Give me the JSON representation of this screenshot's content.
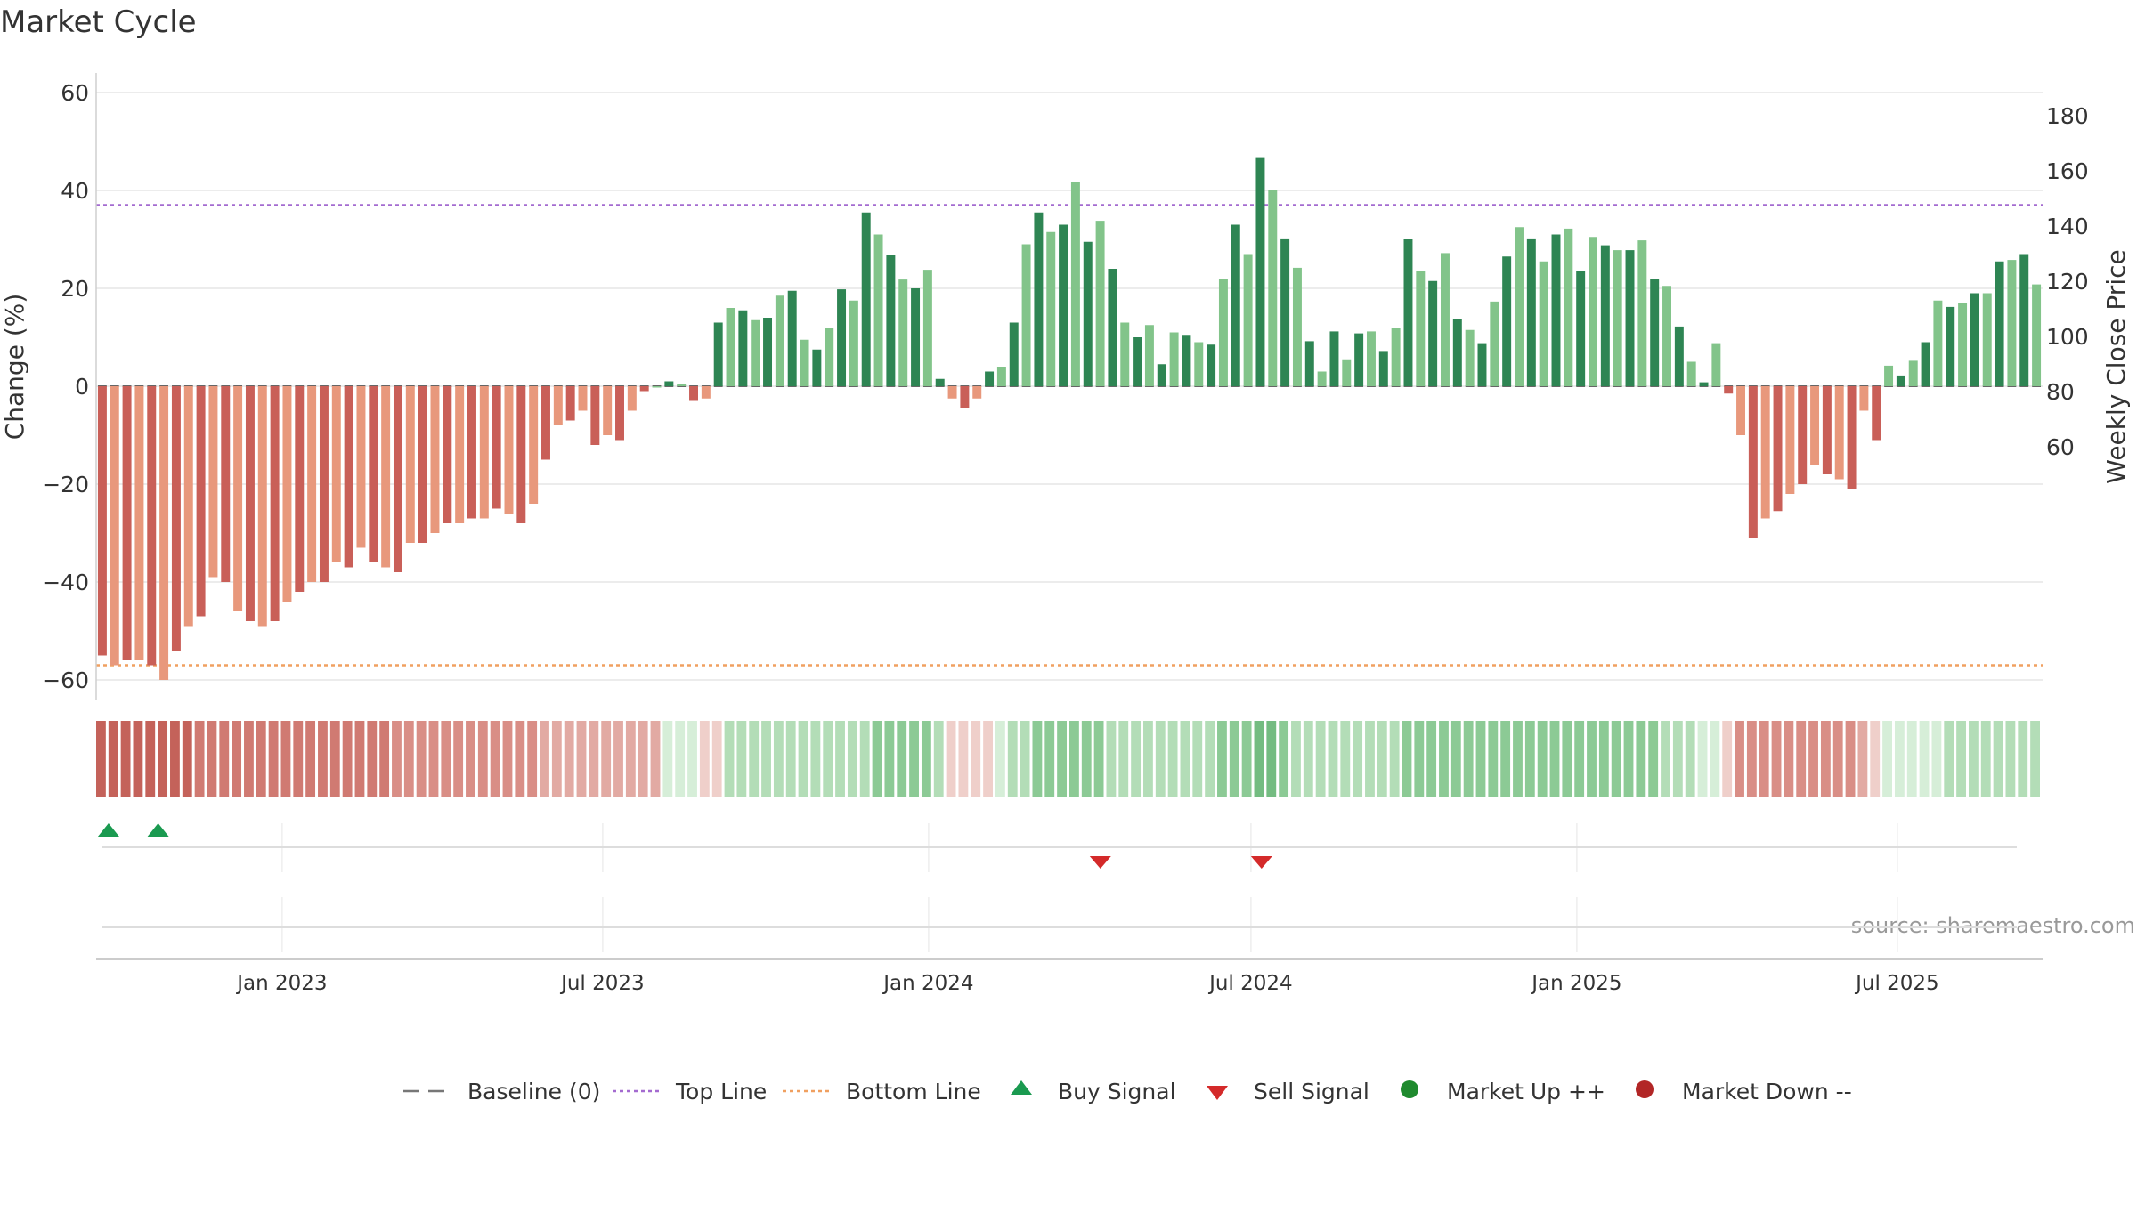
{
  "title": "Market Cycle",
  "source": "source: sharemaestro.com",
  "chart_data": {
    "type": "bar",
    "title": "Market Cycle",
    "ylabel_left": "Change (%)",
    "ylabel_right": "Weekly Close Price",
    "ylim_left": [
      -60,
      60
    ],
    "left_ticks": [
      60,
      40,
      20,
      0,
      -20,
      -40,
      -60
    ],
    "left_tick_labels": [
      "60",
      "40",
      "20",
      "0",
      "−20",
      "−40",
      "−60"
    ],
    "right_ticks": [
      180,
      160,
      140,
      120,
      100,
      80,
      60
    ],
    "x_start": "2022-09-18",
    "x_end": "2025-09-21",
    "x_ticks": [
      {
        "date": "2023-01-01",
        "label": "Jan 2023"
      },
      {
        "date": "2023-07-01",
        "label": "Jul 2023"
      },
      {
        "date": "2024-01-01",
        "label": "Jan 2024"
      },
      {
        "date": "2024-07-01",
        "label": "Jul 2024"
      },
      {
        "date": "2025-01-01",
        "label": "Jan 2025"
      },
      {
        "date": "2025-07-01",
        "label": "Jul 2025"
      }
    ],
    "top_line": 37,
    "bottom_line": -57,
    "values": [
      -55,
      -57,
      -56,
      -56,
      -57,
      -60,
      -54,
      -49,
      -47,
      -39,
      -40,
      -46,
      -48,
      -49,
      -48,
      -44,
      -42,
      -40,
      -40,
      -36,
      -37,
      -33,
      -36,
      -37,
      -38,
      -32,
      -32,
      -30,
      -28,
      -28,
      -27,
      -27,
      -25,
      -26,
      -28,
      -24,
      -15,
      -8,
      -7,
      -5,
      -12,
      -10,
      -11,
      -5,
      -1,
      0,
      1,
      0.5,
      -3,
      -2.5,
      13,
      16,
      15.5,
      13.5,
      14,
      18.5,
      19.5,
      9.5,
      7.5,
      12,
      19.8,
      17.5,
      35.5,
      31,
      26.8,
      21.8,
      20,
      23.8,
      1.5,
      -2.5,
      -4.5,
      -2.5,
      3,
      4,
      13,
      29,
      35.5,
      31.5,
      33,
      41.8,
      29.5,
      33.8,
      24,
      13,
      10,
      12.5,
      4.5,
      11,
      10.5,
      9,
      8.5,
      22,
      33,
      27,
      46.8,
      40,
      30.2,
      24.2,
      9.2,
      3,
      11.2,
      5.5,
      10.8,
      11.2,
      7.2,
      12,
      30,
      23.5,
      21.5,
      27.2,
      13.8,
      11.5,
      8.8,
      17.3,
      26.5,
      32.5,
      30.2,
      25.5,
      31,
      32.2,
      23.5,
      30.5,
      28.8,
      27.8,
      27.8,
      29.8,
      22,
      20.5,
      12.2,
      5,
      0.8,
      8.8,
      -1.5,
      -10,
      -31,
      -27,
      -25.5,
      -22,
      -20,
      -16,
      -18,
      -19,
      -21,
      -5,
      -11,
      4.2,
      2.2,
      5.2,
      9,
      17.5,
      16.2,
      17,
      19,
      19,
      25.5,
      25.8,
      27,
      20.8
    ],
    "heat_strip": [
      -5,
      -5,
      -5,
      -5,
      -5,
      -5,
      -5,
      -5,
      -4,
      -4,
      -4,
      -4,
      -4,
      -4,
      -4,
      -4,
      -4,
      -4,
      -4,
      -4,
      -4,
      -4,
      -4,
      -4,
      -3,
      -3,
      -3,
      -3,
      -3,
      -3,
      -3,
      -3,
      -3,
      -3,
      -3,
      -3,
      -2,
      -2,
      -2,
      -2,
      -2,
      -2,
      -2,
      -2,
      -2,
      -2,
      1,
      1,
      1,
      -1,
      -1,
      2,
      2,
      2,
      2,
      2,
      2,
      2,
      2,
      2,
      2,
      2,
      2,
      3,
      3,
      3,
      3,
      3,
      2,
      -1,
      -1,
      -1,
      -1,
      1,
      2,
      2,
      3,
      3,
      3,
      3,
      3,
      3,
      2,
      2,
      2,
      2,
      2,
      2,
      2,
      2,
      2,
      3,
      3,
      3,
      4,
      4,
      3,
      2,
      2,
      2,
      2,
      2,
      2,
      2,
      2,
      2,
      3,
      3,
      3,
      3,
      3,
      3,
      3,
      3,
      3,
      3,
      3,
      3,
      3,
      3,
      3,
      3,
      3,
      3,
      3,
      3,
      3,
      2,
      2,
      2,
      1,
      1,
      -1,
      -3,
      -3,
      -3,
      -3,
      -3,
      -3,
      -3,
      -3,
      -3,
      -3,
      -2,
      -1,
      1,
      1,
      1,
      1,
      1,
      2,
      2,
      2,
      2,
      2,
      2,
      2,
      2
    ],
    "signals": [
      {
        "type": "buy",
        "date": "2022-09-25"
      },
      {
        "type": "buy",
        "date": "2022-10-23"
      },
      {
        "type": "sell",
        "date": "2024-04-07"
      },
      {
        "type": "sell",
        "date": "2024-07-07"
      }
    ],
    "legend": [
      {
        "key": "baseline",
        "label": "Baseline (0)"
      },
      {
        "key": "top",
        "label": "Top Line"
      },
      {
        "key": "bottom",
        "label": "Bottom Line"
      },
      {
        "key": "buy",
        "label": "Buy Signal"
      },
      {
        "key": "sell",
        "label": "Sell Signal"
      },
      {
        "key": "up",
        "label": "Market Up ++"
      },
      {
        "key": "down",
        "label": "Market Down --"
      }
    ],
    "colors": {
      "neg_dark": "#c95f58",
      "neg_light": "#e8987c",
      "pos_dark": "#2e8553",
      "pos_light": "#82c48a",
      "top_line": "#a46bd0",
      "bottom_line": "#f0a060",
      "buy": "#1a9a50",
      "sell": "#d42a2a",
      "market_up": "#1f8a2e",
      "market_down": "#b22626",
      "baseline": "#777777",
      "grid": "#e6e6e6"
    }
  }
}
